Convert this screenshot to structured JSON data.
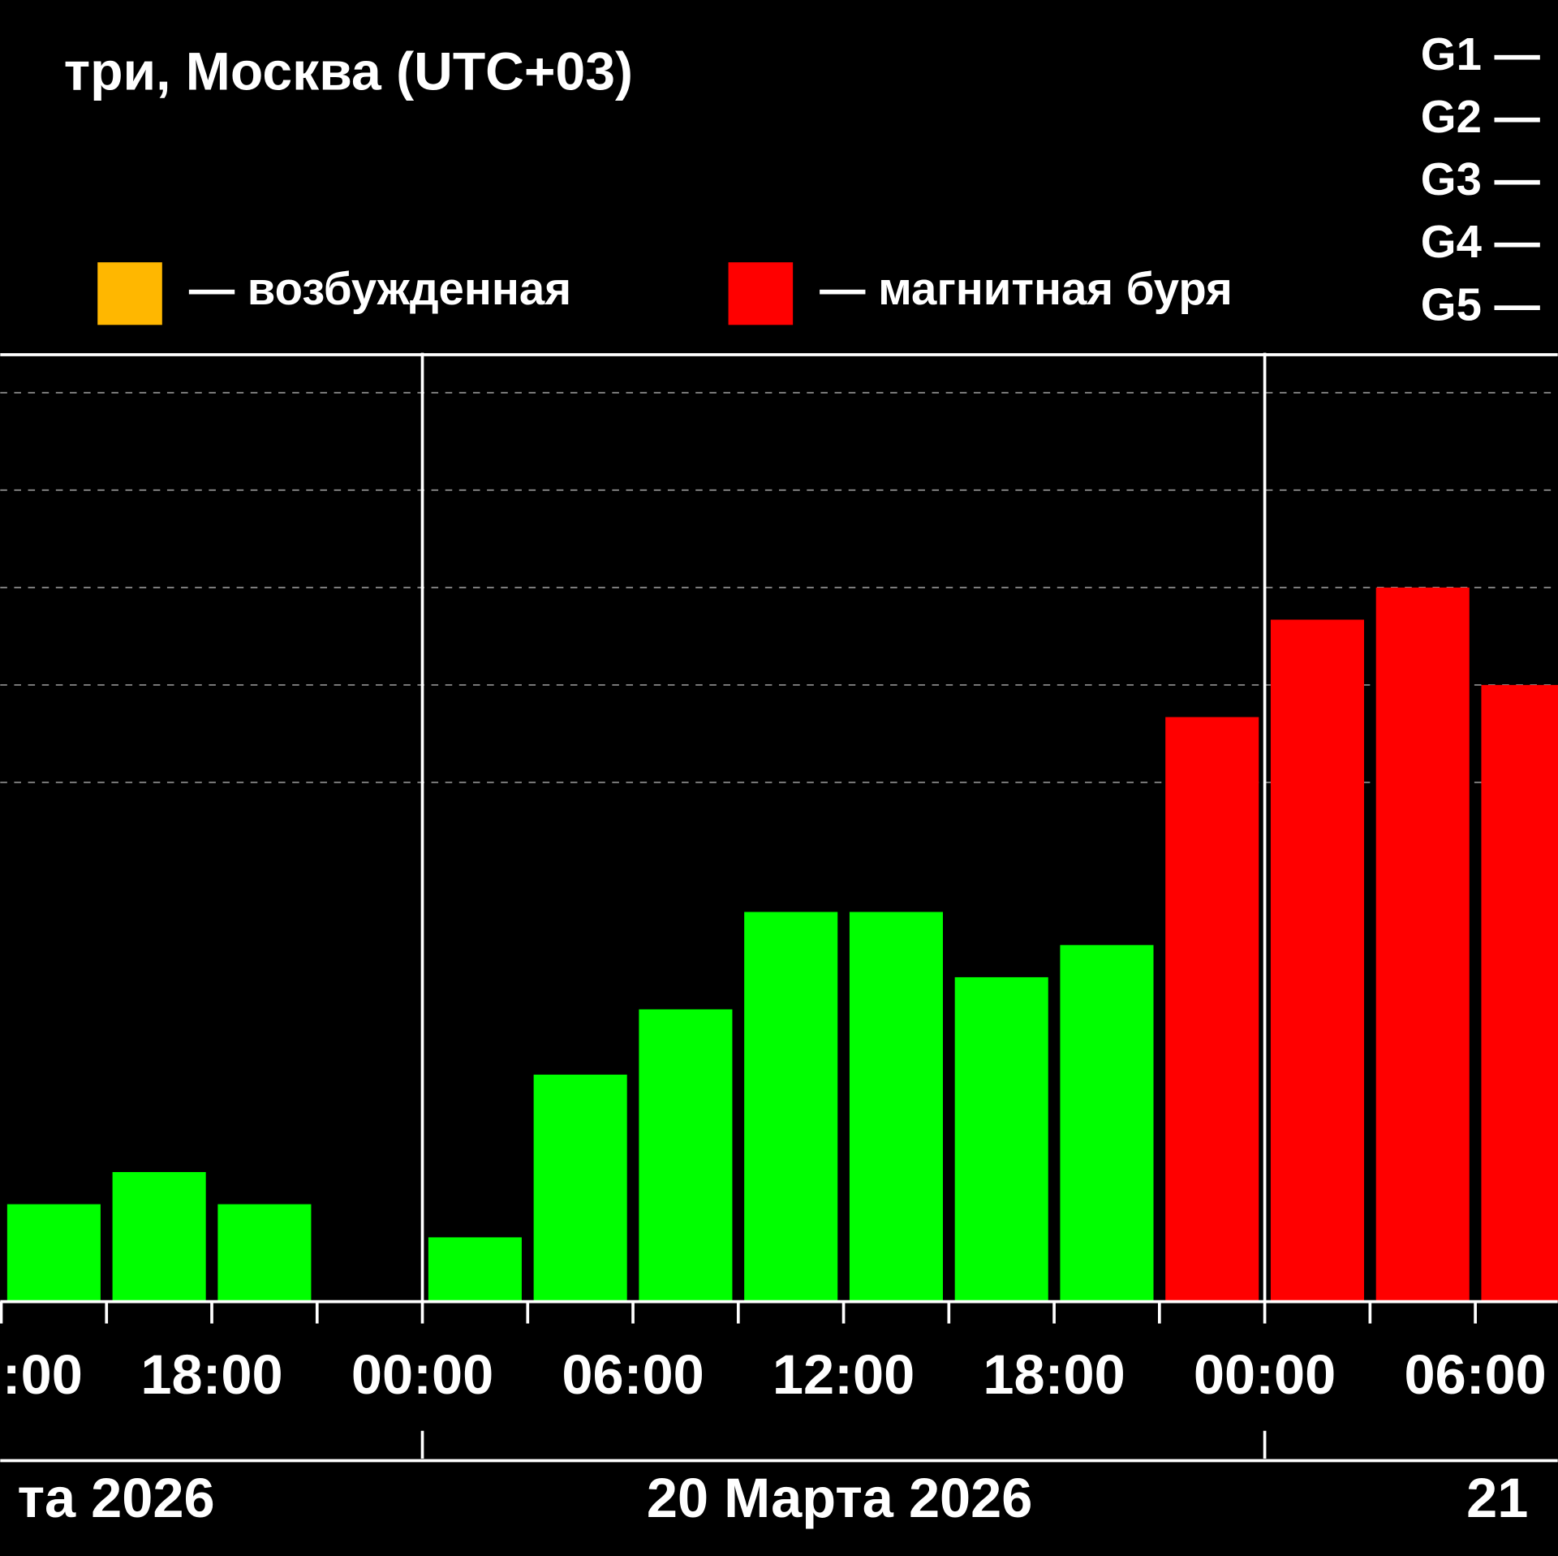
{
  "chart_data": {
    "type": "bar",
    "title": "три, Москва (UTC+03)",
    "legend": [
      {
        "label": "— возбужденная",
        "color": "#ffb700"
      },
      {
        "label": "— магнитная буря",
        "color": "#ff0000"
      }
    ],
    "levels": [
      "G1 —",
      "G2 —",
      "G3 —",
      "G4 —",
      "G5 —"
    ],
    "categories": [
      ":00",
      null,
      "18:00",
      null,
      "00:00",
      null,
      "06:00",
      null,
      "12:00",
      null,
      "18:00",
      null,
      "00:00",
      null,
      "06:00"
    ],
    "values": [
      0.67,
      1,
      0.67,
      null,
      0.33,
      2,
      2.67,
      3.67,
      3.67,
      3,
      3.33,
      5.67,
      6.67,
      7,
      6
    ],
    "colors": [
      "#00ff00",
      "#00ff00",
      "#00ff00",
      null,
      "#00ff00",
      "#00ff00",
      "#00ff00",
      "#00ff00",
      "#00ff00",
      "#00ff00",
      "#00ff00",
      "#ff0000",
      "#ff0000",
      "#ff0000",
      "#ff0000"
    ],
    "dates": [
      "та 2026",
      "20 Марта 2026",
      "21"
    ],
    "ylim": [
      -0.33,
      9.41
    ],
    "yticks": [
      5,
      6,
      7,
      8,
      9
    ],
    "grid": true
  }
}
